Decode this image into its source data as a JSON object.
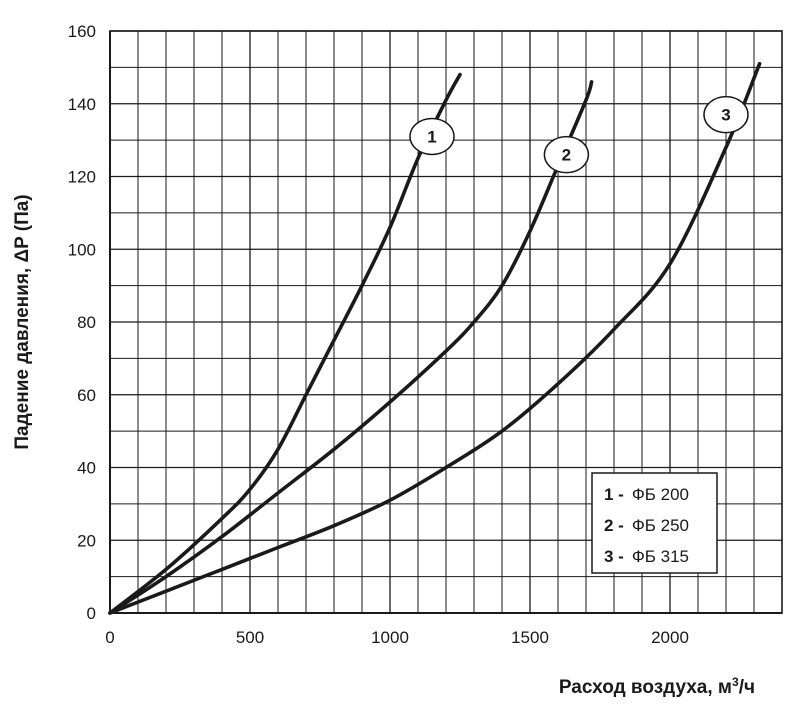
{
  "chart_data": {
    "type": "line",
    "title": "",
    "xlabel": "Расход воздуха, м³/ч",
    "ylabel": "Падение давления, ΔP (Па)",
    "xlim": [
      0,
      2400
    ],
    "ylim": [
      0,
      160
    ],
    "x_ticks": [
      0,
      500,
      1000,
      1500,
      2000
    ],
    "y_ticks": [
      0,
      20,
      40,
      60,
      80,
      100,
      120,
      140,
      160
    ],
    "grid": true,
    "legend_position": "bottom-right",
    "series": [
      {
        "name": "ФБ 200",
        "label": "1",
        "points": [
          [
            0,
            0
          ],
          [
            200,
            12
          ],
          [
            400,
            26
          ],
          [
            500,
            34
          ],
          [
            600,
            45
          ],
          [
            700,
            60
          ],
          [
            800,
            75
          ],
          [
            900,
            90
          ],
          [
            1000,
            106
          ],
          [
            1100,
            125
          ],
          [
            1200,
            141
          ],
          [
            1250,
            148
          ]
        ]
      },
      {
        "name": "ФБ 250",
        "label": "2",
        "points": [
          [
            0,
            0
          ],
          [
            200,
            10
          ],
          [
            400,
            21
          ],
          [
            600,
            33
          ],
          [
            800,
            45
          ],
          [
            1000,
            58
          ],
          [
            1200,
            72
          ],
          [
            1300,
            80
          ],
          [
            1400,
            90
          ],
          [
            1500,
            105
          ],
          [
            1600,
            123
          ],
          [
            1700,
            141
          ],
          [
            1720,
            146
          ]
        ]
      },
      {
        "name": "ФБ 315",
        "label": "3",
        "points": [
          [
            0,
            0
          ],
          [
            200,
            6
          ],
          [
            400,
            12
          ],
          [
            600,
            18
          ],
          [
            800,
            24
          ],
          [
            1000,
            31
          ],
          [
            1200,
            40
          ],
          [
            1400,
            50
          ],
          [
            1600,
            63
          ],
          [
            1800,
            78
          ],
          [
            2000,
            96
          ],
          [
            2200,
            128
          ],
          [
            2320,
            151
          ]
        ]
      }
    ],
    "legend": [
      {
        "num": "1 -",
        "text": "ФБ 200"
      },
      {
        "num": "2 -",
        "text": "ФБ 250"
      },
      {
        "num": "3 -",
        "text": "ФБ 315"
      }
    ]
  }
}
